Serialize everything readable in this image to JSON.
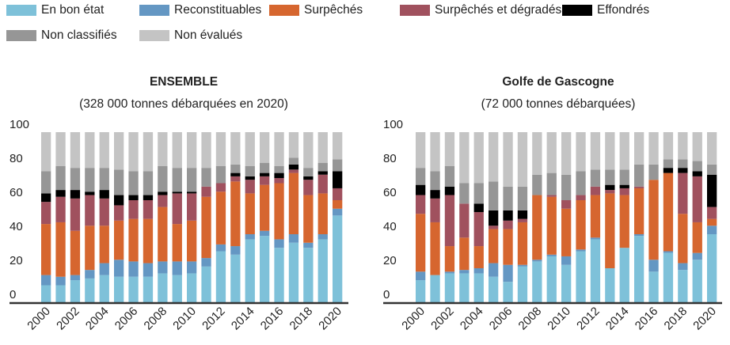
{
  "legend": [
    {
      "label": "En bon état",
      "color": "#7ec1d9"
    },
    {
      "label": "Reconstituables",
      "color": "#6497c3"
    },
    {
      "label": "Surpêchés",
      "color": "#d6662f"
    },
    {
      "label": "Surpêchés et dégradés",
      "color": "#a0515e"
    },
    {
      "label": "Effondrés",
      "color": "#000000"
    },
    {
      "label": "Non classifiés",
      "color": "#969696"
    },
    {
      "label": "Non évalués",
      "color": "#c4c4c4"
    }
  ],
  "chart_data": [
    {
      "type": "bar",
      "stacked": true,
      "title": "ENSEMBLE",
      "subtitle": "(328 000 tonnes débarquées en 2020)",
      "categories": [
        "2000",
        "2001",
        "2002",
        "2003",
        "2004",
        "2005",
        "2006",
        "2007",
        "2008",
        "2009",
        "2010",
        "2011",
        "2012",
        "2013",
        "2014",
        "2015",
        "2016",
        "2017",
        "2018",
        "2019",
        "2020"
      ],
      "x_tick_labels": [
        "2000",
        "2002",
        "2004",
        "2006",
        "2008",
        "2010",
        "2012",
        "2014",
        "2016",
        "2018",
        "2020"
      ],
      "ylim": [
        0,
        100
      ],
      "y_ticks": [
        0,
        20,
        40,
        60,
        80,
        100
      ],
      "grid": false,
      "legend_position": "top",
      "series": [
        {
          "name": "En bon état",
          "color": "#7ec1d9",
          "values": [
            10,
            10,
            13,
            14,
            16,
            15,
            15,
            15,
            17,
            16,
            17,
            21,
            30,
            28,
            37,
            39,
            32,
            35,
            32,
            37,
            51
          ]
        },
        {
          "name": "Reconstituables",
          "color": "#6497c3",
          "values": [
            6,
            5,
            3,
            5,
            7,
            10,
            9,
            8,
            7,
            8,
            7,
            5,
            4,
            5,
            3,
            3,
            5,
            5,
            3,
            3,
            4
          ]
        },
        {
          "name": "Surpêchés",
          "color": "#d6662f",
          "values": [
            30,
            32,
            26,
            26,
            22,
            23,
            25,
            26,
            32,
            22,
            24,
            36,
            31,
            38,
            24,
            27,
            33,
            36,
            28,
            24,
            5
          ]
        },
        {
          "name": "Surpêchés et dégradés",
          "color": "#a0515e",
          "values": [
            13,
            15,
            19,
            18,
            16,
            9,
            11,
            11,
            7,
            18,
            16,
            6,
            5,
            3,
            8,
            5,
            3,
            2,
            9,
            11,
            7
          ]
        },
        {
          "name": "Effondrés",
          "color": "#000000",
          "values": [
            5,
            4,
            5,
            2,
            5,
            6,
            3,
            3,
            2,
            1,
            1,
            0,
            0,
            2,
            2,
            2,
            3,
            3,
            2,
            2,
            10
          ]
        },
        {
          "name": "Non classifiés",
          "color": "#969696",
          "values": [
            13,
            14,
            13,
            14,
            13,
            15,
            14,
            14,
            15,
            14,
            14,
            11,
            10,
            5,
            6,
            6,
            4,
            4,
            5,
            5,
            7
          ]
        },
        {
          "name": "Non évalués",
          "color": "#c4c4c4",
          "values": [
            23,
            20,
            21,
            21,
            21,
            22,
            23,
            23,
            20,
            21,
            21,
            21,
            20,
            19,
            20,
            18,
            20,
            15,
            21,
            18,
            16
          ]
        }
      ]
    },
    {
      "type": "bar",
      "stacked": true,
      "title": "Golfe de Gascogne",
      "subtitle": "(72 000 tonnes débarquées)",
      "categories": [
        "2000",
        "2001",
        "2002",
        "2003",
        "2004",
        "2005",
        "2006",
        "2007",
        "2008",
        "2009",
        "2010",
        "2011",
        "2012",
        "2013",
        "2014",
        "2015",
        "2016",
        "2017",
        "2018",
        "2019",
        "2020"
      ],
      "x_tick_labels": [
        "2000",
        "2002",
        "2004",
        "2006",
        "2008",
        "2010",
        "2012",
        "2014",
        "2016",
        "2018",
        "2020"
      ],
      "ylim": [
        0,
        100
      ],
      "y_ticks": [
        0,
        20,
        40,
        60,
        80,
        100
      ],
      "grid": false,
      "legend_position": "top",
      "series": [
        {
          "name": "En bon état",
          "color": "#7ec1d9",
          "values": [
            13,
            16,
            17,
            17,
            17,
            15,
            12,
            21,
            24,
            27,
            22,
            30,
            37,
            20,
            32,
            39,
            18,
            29,
            19,
            25,
            40
          ]
        },
        {
          "name": "Reconstituables",
          "color": "#6497c3",
          "values": [
            5,
            0,
            1,
            2,
            3,
            8,
            10,
            1,
            1,
            1,
            5,
            1,
            1,
            0,
            0,
            1,
            7,
            1,
            4,
            4,
            5
          ]
        },
        {
          "name": "Surpêchés",
          "color": "#d6662f",
          "values": [
            34,
            31,
            15,
            19,
            13,
            20,
            21,
            25,
            38,
            34,
            28,
            29,
            25,
            44,
            31,
            27,
            47,
            46,
            29,
            18,
            4
          ]
        },
        {
          "name": "Surpêchés et dégradés",
          "color": "#a0515e",
          "values": [
            11,
            14,
            30,
            20,
            20,
            2,
            5,
            2,
            0,
            1,
            5,
            3,
            5,
            2,
            4,
            1,
            0,
            0,
            24,
            27,
            7
          ]
        },
        {
          "name": "Effondrés",
          "color": "#000000",
          "values": [
            6,
            5,
            5,
            0,
            5,
            9,
            6,
            5,
            0,
            0,
            0,
            0,
            0,
            3,
            2,
            0,
            0,
            3,
            3,
            3,
            19
          ]
        },
        {
          "name": "Non classifiés",
          "color": "#969696",
          "values": [
            10,
            11,
            12,
            12,
            12,
            17,
            14,
            14,
            12,
            13,
            15,
            14,
            10,
            9,
            9,
            13,
            9,
            5,
            5,
            6,
            6
          ]
        },
        {
          "name": "Non évalués",
          "color": "#c4c4c4",
          "values": [
            21,
            23,
            20,
            30,
            30,
            29,
            32,
            32,
            25,
            24,
            25,
            23,
            22,
            22,
            22,
            19,
            19,
            16,
            16,
            17,
            19
          ]
        }
      ]
    }
  ]
}
